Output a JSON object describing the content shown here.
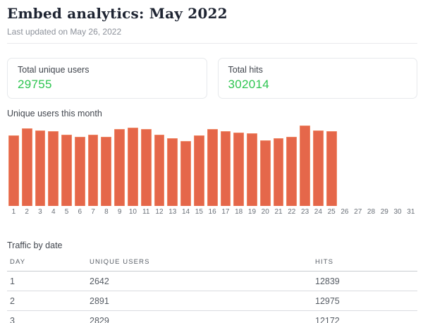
{
  "header": {
    "title": "Embed analytics: May 2022",
    "subtitle": "Last updated on May 26, 2022"
  },
  "stats": [
    {
      "label": "Total unique users",
      "value": "29755"
    },
    {
      "label": "Total hits",
      "value": "302014"
    }
  ],
  "colors": {
    "bar_fill": "#e5674a",
    "bar_border": "#ee8765",
    "stat_value_green": "#2dc550",
    "title_navy": "#1e2432"
  },
  "chart_data": {
    "type": "bar",
    "title": "Unique users this month",
    "categories": [
      "1",
      "2",
      "3",
      "4",
      "5",
      "6",
      "7",
      "8",
      "9",
      "10",
      "11",
      "12",
      "13",
      "14",
      "15",
      "16",
      "17",
      "18",
      "19",
      "20",
      "21",
      "22",
      "23",
      "24",
      "25",
      "26",
      "27",
      "28",
      "29",
      "30",
      "31"
    ],
    "values": [
      2642,
      2891,
      2829,
      2780,
      2650,
      2570,
      2650,
      2575,
      2880,
      2930,
      2860,
      2670,
      2540,
      2410,
      2620,
      2880,
      2800,
      2750,
      2700,
      2460,
      2540,
      2590,
      2990,
      2830,
      2780,
      null,
      null,
      null,
      null,
      null,
      null
    ],
    "xlabel": "",
    "ylabel": "",
    "ylim": [
      0,
      3000
    ],
    "grid": false,
    "legend": false
  },
  "table": {
    "title": "Traffic by date",
    "columns": [
      "DAY",
      "UNIQUE USERS",
      "HITS"
    ],
    "rows": [
      [
        "1",
        "2642",
        "12839"
      ],
      [
        "2",
        "2891",
        "12975"
      ],
      [
        "3",
        "2829",
        "12172"
      ]
    ]
  }
}
